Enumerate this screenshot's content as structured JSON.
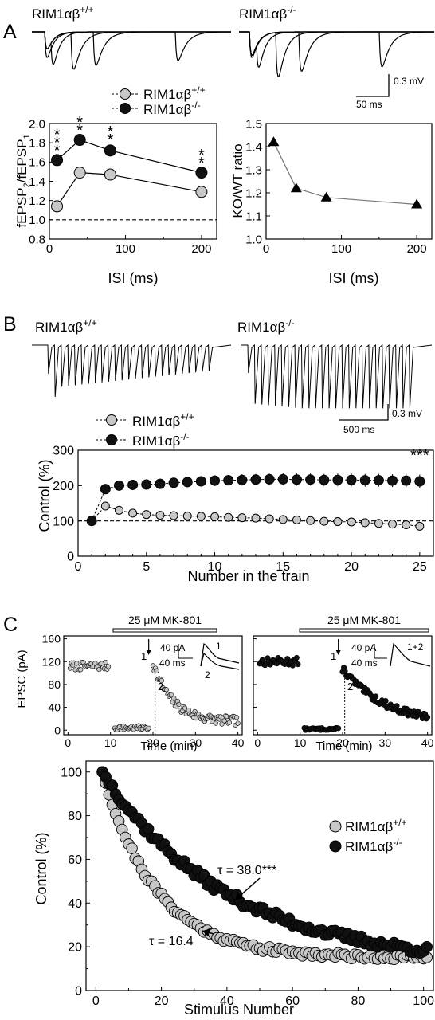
{
  "colors": {
    "wt_fill": "#c8c8c8",
    "ko_fill": "#111111",
    "ink": "#000000"
  },
  "panels": {
    "A": {
      "label": "A",
      "trace_titles": [
        {
          "base": "RIM1αβ",
          "sup": "+/+"
        },
        {
          "base": "RIM1αβ",
          "sup": "-/-"
        }
      ],
      "scalebar": {
        "v": "0.3 mV",
        "t": "50 ms"
      }
    },
    "B": {
      "label": "B",
      "trace_titles": [
        {
          "base": "RIM1αβ",
          "sup": "+/+"
        },
        {
          "base": "RIM1αβ",
          "sup": "-/-"
        }
      ],
      "scalebar": {
        "v": "0.3 mV",
        "t": "500 ms"
      }
    },
    "C": {
      "label": "C",
      "drug_label": "25 μM MK-801",
      "inset_left": {
        "amp": "40 pA",
        "time": "40 ms",
        "trace_labels": [
          "1",
          "2"
        ]
      },
      "inset_right": {
        "amp": "40 pA",
        "time": "40 ms",
        "trace_labels": [
          "1+2"
        ]
      },
      "point_marks": [
        "1",
        "2"
      ]
    }
  },
  "chart_data": [
    {
      "id": "A-left",
      "type": "line",
      "xlabel": "ISI (ms)",
      "ylabel": "fEPSP2/fEPSP1",
      "ylabel_parts": {
        "a": "fEPSP",
        "a_sub": "2",
        "slash": "/fEPSP",
        "b_sub": "1"
      },
      "xlim": [
        0,
        220
      ],
      "ylim": [
        0.8,
        2.0
      ],
      "xticks": [
        0,
        100,
        200
      ],
      "yticks": [
        0.8,
        1.0,
        1.2,
        1.4,
        1.6,
        1.8,
        2.0
      ],
      "reference_line": 1.0,
      "legend": {
        "position": "top-center",
        "entries": [
          {
            "base": "RIM1αβ",
            "sup": "+/+",
            "series": 0
          },
          {
            "base": "RIM1αβ",
            "sup": "-/-",
            "series": 1
          }
        ]
      },
      "series": [
        {
          "x": [
            10,
            40,
            80,
            200
          ],
          "values": [
            1.14,
            1.49,
            1.47,
            1.29
          ],
          "err": [
            0.06,
            0.06,
            0.06,
            0.03
          ]
        },
        {
          "x": [
            10,
            40,
            80,
            200
          ],
          "values": [
            1.62,
            1.83,
            1.72,
            1.49
          ],
          "err": [
            0.03,
            0.03,
            0.04,
            0.03
          ]
        }
      ],
      "significance": [
        {
          "x": 10,
          "label": "***"
        },
        {
          "x": 40,
          "label": "**"
        },
        {
          "x": 80,
          "label": "**"
        },
        {
          "x": 200,
          "label": "**"
        }
      ]
    },
    {
      "id": "A-right",
      "type": "line",
      "xlabel": "ISI (ms)",
      "ylabel": "KO/WT ratio",
      "xlim": [
        0,
        220
      ],
      "ylim": [
        1.0,
        1.5
      ],
      "xticks": [
        0,
        100,
        200
      ],
      "yticks": [
        1.0,
        1.1,
        1.2,
        1.3,
        1.4,
        1.5
      ],
      "series": [
        {
          "x": [
            10,
            40,
            80,
            200
          ],
          "values": [
            1.42,
            1.22,
            1.18,
            1.15
          ]
        }
      ]
    },
    {
      "id": "B",
      "type": "line",
      "xlabel": "Number in the train",
      "ylabel": "Control (%)",
      "xlim": [
        0,
        26
      ],
      "ylim": [
        0,
        300
      ],
      "xticks": [
        0,
        5,
        10,
        15,
        20,
        25
      ],
      "yticks": [
        0,
        100,
        200,
        300
      ],
      "reference_line": 100,
      "legend": {
        "position": "top-left",
        "entries": [
          {
            "base": "RIM1αβ",
            "sup": "+/+",
            "series": 0
          },
          {
            "base": "RIM1αβ",
            "sup": "-/-",
            "series": 1
          }
        ]
      },
      "x": [
        1,
        2,
        3,
        4,
        5,
        6,
        7,
        8,
        9,
        10,
        11,
        12,
        13,
        14,
        15,
        16,
        17,
        18,
        19,
        20,
        21,
        22,
        23,
        24,
        25
      ],
      "series": [
        {
          "values": [
            100,
            142,
            130,
            122,
            118,
            116,
            115,
            114,
            113,
            112,
            110,
            109,
            108,
            106,
            104,
            103,
            101,
            99,
            98,
            97,
            95,
            93,
            91,
            89,
            85
          ],
          "err": [
            0,
            6,
            6,
            7,
            7,
            7,
            7,
            7,
            7,
            7,
            7,
            7,
            7,
            7,
            7,
            7,
            7,
            7,
            7,
            7,
            7,
            7,
            7,
            7,
            7
          ]
        },
        {
          "values": [
            100,
            190,
            200,
            202,
            203,
            205,
            208,
            210,
            212,
            214,
            215,
            216,
            217,
            218,
            218,
            217,
            217,
            216,
            216,
            216,
            215,
            215,
            214,
            214,
            212
          ],
          "err": [
            0,
            8,
            10,
            10,
            12,
            12,
            14,
            14,
            14,
            15,
            15,
            16,
            16,
            16,
            17,
            17,
            17,
            17,
            18,
            18,
            18,
            18,
            18,
            19,
            19
          ]
        }
      ],
      "significance": [
        {
          "x": 25,
          "label": "***"
        }
      ]
    },
    {
      "id": "C-top-left",
      "type": "scatter",
      "xlabel": "Time (min)",
      "ylabel": "EPSC (pA)",
      "xlim": [
        -1,
        41
      ],
      "ylim": [
        -8,
        165
      ],
      "xticks": [
        0,
        10,
        20,
        30,
        40
      ],
      "yticks": [
        0,
        40,
        80,
        120,
        160
      ],
      "segments": [
        {
          "t0": 0.5,
          "t1": 9.5,
          "n": 30,
          "mode": "flat",
          "level": 112,
          "noise": 7
        },
        {
          "t0": 11,
          "t1": 19,
          "n": 28,
          "mode": "flat",
          "level": 4,
          "noise": 4
        },
        {
          "t0": 20,
          "t1": 40,
          "n": 70,
          "mode": "decay",
          "start": 118,
          "plateau": 15,
          "tau": 4.5,
          "noise": 8
        }
      ],
      "arrow_x": 19,
      "dotted_x": 20.5
    },
    {
      "id": "C-top-right",
      "type": "scatter",
      "xlabel": "Time (min)",
      "ylabel": "",
      "xlim": [
        -1,
        41
      ],
      "ylim": [
        -8,
        165
      ],
      "xticks": [
        0,
        10,
        20,
        30,
        40
      ],
      "yticks": [
        0,
        40,
        80,
        120,
        160
      ],
      "segments": [
        {
          "t0": 0.5,
          "t1": 9.5,
          "n": 30,
          "mode": "flat",
          "level": 120,
          "noise": 7
        },
        {
          "t0": 11,
          "t1": 19,
          "n": 28,
          "mode": "flat",
          "level": 2,
          "noise": 2
        },
        {
          "t0": 20,
          "t1": 40,
          "n": 70,
          "mode": "decay",
          "start": 108,
          "plateau": 10,
          "tau": 10,
          "noise": 6
        }
      ],
      "arrow_x": 19,
      "dotted_x": 20.5
    },
    {
      "id": "C-bottom",
      "type": "scatter",
      "xlabel": "Stimulus Number",
      "ylabel": "Control (%)",
      "xlim": [
        -3,
        103
      ],
      "ylim": [
        0,
        105
      ],
      "xticks": [
        0,
        20,
        40,
        60,
        80,
        100
      ],
      "yticks": [
        0,
        20,
        40,
        60,
        80,
        100
      ],
      "n_points": 100,
      "legend": {
        "position": "right",
        "entries": [
          {
            "base": "RIM1αβ",
            "sup": "+/+",
            "series": 0
          },
          {
            "base": "RIM1αβ",
            "sup": "-/-",
            "series": 1
          }
        ]
      },
      "series": [
        {
          "tau": 16.4,
          "plateau": 15,
          "annotation": "τ = 16.4",
          "at_x": 30
        },
        {
          "tau": 38.0,
          "plateau": 12,
          "annotation": "τ = 38.0***",
          "at_x": 40
        }
      ]
    }
  ]
}
